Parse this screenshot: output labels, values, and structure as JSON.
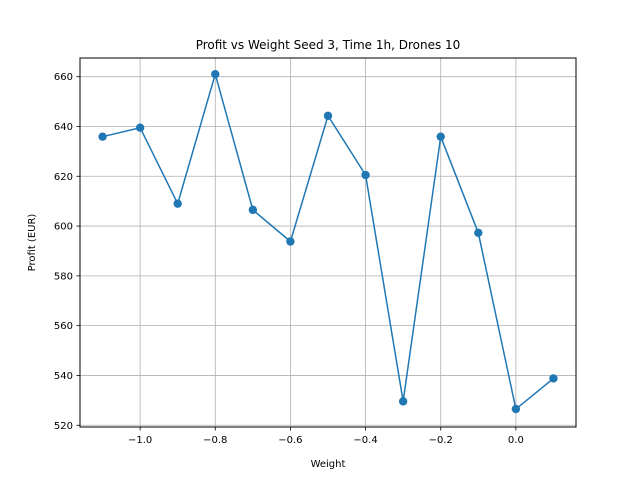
{
  "chart_data": {
    "type": "line",
    "title": "Profit vs Weight Seed 3, Time 1h, Drones 10",
    "xlabel": "Weight",
    "ylabel": "Profit (EUR)",
    "xlim": [
      -1.16,
      0.16
    ],
    "ylim": [
      519.3,
      667.5
    ],
    "xticks": [
      -1.0,
      -0.8,
      -0.6,
      -0.4,
      -0.2,
      0.0
    ],
    "xtick_labels": [
      "−1.0",
      "−0.8",
      "−0.6",
      "−0.4",
      "−0.2",
      "0.0"
    ],
    "yticks": [
      520,
      540,
      560,
      580,
      600,
      620,
      640,
      660
    ],
    "ytick_labels": [
      "520",
      "540",
      "560",
      "580",
      "600",
      "620",
      "640",
      "660"
    ],
    "grid": true,
    "marker": "circle",
    "color": "#1f77b4",
    "series": [
      {
        "x": [
          -1.1,
          -1.0,
          -0.9,
          -0.8,
          -0.7,
          -0.6,
          -0.5,
          -0.4,
          -0.3,
          -0.2,
          -0.1,
          0.0,
          0.1
        ],
        "values": [
          635.9,
          639.5,
          609.0,
          661.0,
          606.5,
          593.8,
          644.3,
          620.5,
          529.6,
          635.9,
          597.3,
          526.5,
          538.8
        ]
      }
    ]
  }
}
